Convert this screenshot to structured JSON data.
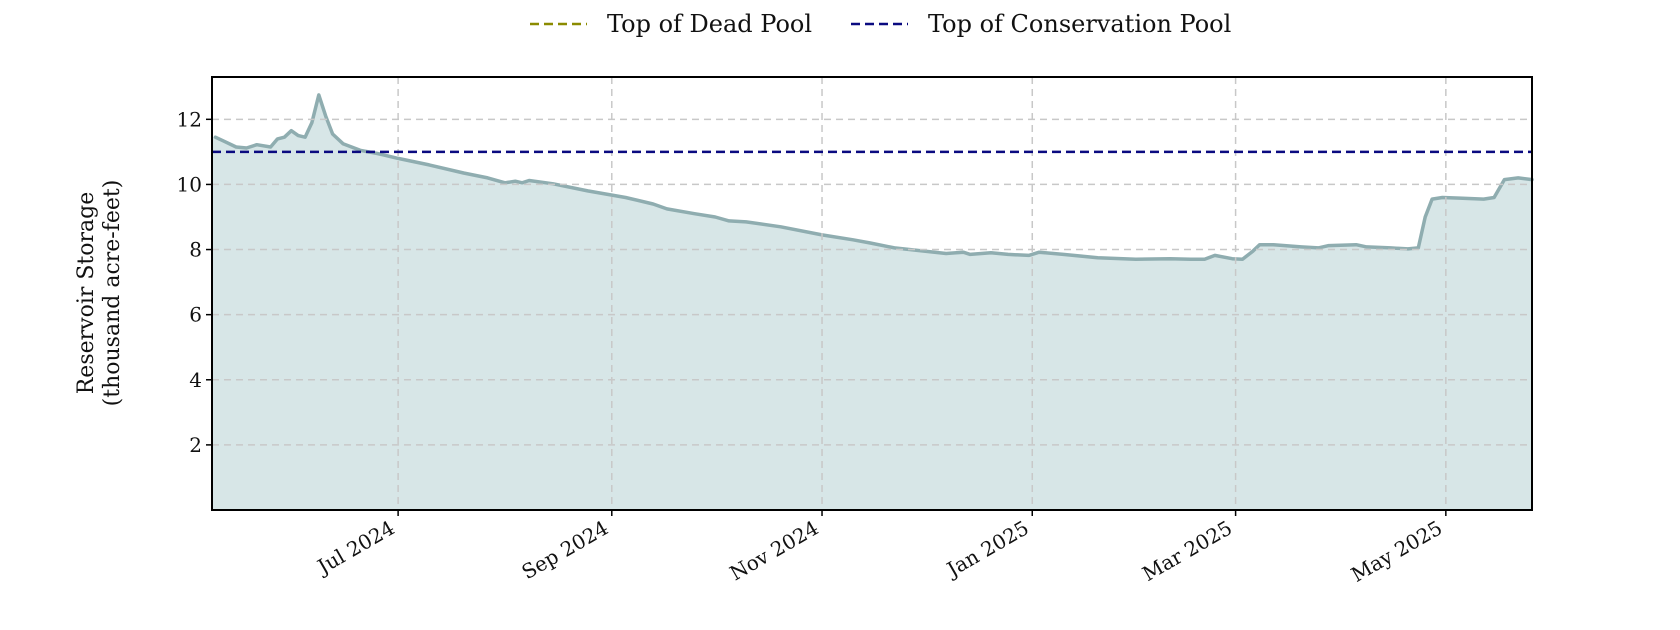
{
  "chart_data": {
    "type": "area",
    "title": "",
    "ylabel": [
      "Reservoir Storage",
      "(thousand acre-feet)"
    ],
    "ylim": [
      0,
      13.3
    ],
    "yticks": [
      2,
      4,
      6,
      8,
      10,
      12
    ],
    "xlim": [
      "2024-05-08",
      "2025-05-26"
    ],
    "xticks": [
      {
        "date": "2024-07-01",
        "label": "Jul 2024"
      },
      {
        "date": "2024-09-01",
        "label": "Sep 2024"
      },
      {
        "date": "2024-11-01",
        "label": "Nov 2024"
      },
      {
        "date": "2025-01-01",
        "label": "Jan 2025"
      },
      {
        "date": "2025-03-01",
        "label": "Mar 2025"
      },
      {
        "date": "2025-05-01",
        "label": "May 2025"
      }
    ],
    "grid": true,
    "legend": {
      "placement": "top-center",
      "entries": [
        {
          "label": "Top of Dead Pool",
          "color": "#8b8b00",
          "style": "dashed"
        },
        {
          "label": "Top of Conservation Pool",
          "color": "#0a0a80",
          "style": "dashed"
        }
      ]
    },
    "reference_lines": [
      {
        "name": "Top of Conservation Pool",
        "y": 11.0,
        "color": "#0a0a80"
      }
    ],
    "series": [
      {
        "line_color": "#8fadb0",
        "fill_color": "#d7e6e7",
        "points": [
          [
            "2024-05-09",
            11.45
          ],
          [
            "2024-05-12",
            11.3
          ],
          [
            "2024-05-15",
            11.15
          ],
          [
            "2024-05-18",
            11.12
          ],
          [
            "2024-05-21",
            11.22
          ],
          [
            "2024-05-25",
            11.15
          ],
          [
            "2024-05-27",
            11.4
          ],
          [
            "2024-05-29",
            11.45
          ],
          [
            "2024-05-31",
            11.65
          ],
          [
            "2024-06-02",
            11.5
          ],
          [
            "2024-06-04",
            11.45
          ],
          [
            "2024-06-06",
            11.9
          ],
          [
            "2024-06-08",
            12.75
          ],
          [
            "2024-06-10",
            12.1
          ],
          [
            "2024-06-12",
            11.55
          ],
          [
            "2024-06-15",
            11.25
          ],
          [
            "2024-06-20",
            11.05
          ],
          [
            "2024-06-25",
            10.95
          ],
          [
            "2024-07-01",
            10.8
          ],
          [
            "2024-07-10",
            10.6
          ],
          [
            "2024-07-20",
            10.35
          ],
          [
            "2024-07-27",
            10.2
          ],
          [
            "2024-08-01",
            10.05
          ],
          [
            "2024-08-04",
            10.1
          ],
          [
            "2024-08-06",
            10.05
          ],
          [
            "2024-08-08",
            10.12
          ],
          [
            "2024-08-15",
            10.02
          ],
          [
            "2024-08-25",
            9.8
          ],
          [
            "2024-09-05",
            9.6
          ],
          [
            "2024-09-13",
            9.4
          ],
          [
            "2024-09-17",
            9.25
          ],
          [
            "2024-09-25",
            9.1
          ],
          [
            "2024-10-01",
            9.0
          ],
          [
            "2024-10-05",
            8.88
          ],
          [
            "2024-10-10",
            8.85
          ],
          [
            "2024-10-20",
            8.7
          ],
          [
            "2024-11-01",
            8.45
          ],
          [
            "2024-11-10",
            8.3
          ],
          [
            "2024-11-15",
            8.2
          ],
          [
            "2024-11-22",
            8.05
          ],
          [
            "2024-12-01",
            7.95
          ],
          [
            "2024-12-07",
            7.88
          ],
          [
            "2024-12-12",
            7.92
          ],
          [
            "2024-12-14",
            7.85
          ],
          [
            "2024-12-20",
            7.9
          ],
          [
            "2024-12-25",
            7.85
          ],
          [
            "2024-12-31",
            7.82
          ],
          [
            "2025-01-03",
            7.92
          ],
          [
            "2025-01-10",
            7.85
          ],
          [
            "2025-01-20",
            7.75
          ],
          [
            "2025-01-31",
            7.7
          ],
          [
            "2025-02-10",
            7.72
          ],
          [
            "2025-02-16",
            7.7
          ],
          [
            "2025-02-20",
            7.7
          ],
          [
            "2025-02-23",
            7.82
          ],
          [
            "2025-02-28",
            7.72
          ],
          [
            "2025-03-03",
            7.7
          ],
          [
            "2025-03-06",
            7.95
          ],
          [
            "2025-03-08",
            8.15
          ],
          [
            "2025-03-12",
            8.15
          ],
          [
            "2025-03-20",
            8.08
          ],
          [
            "2025-03-25",
            8.05
          ],
          [
            "2025-03-28",
            8.12
          ],
          [
            "2025-04-05",
            8.15
          ],
          [
            "2025-04-08",
            8.08
          ],
          [
            "2025-04-15",
            8.05
          ],
          [
            "2025-04-20",
            8.02
          ],
          [
            "2025-04-23",
            8.05
          ],
          [
            "2025-04-25",
            9.0
          ],
          [
            "2025-04-27",
            9.55
          ],
          [
            "2025-04-30",
            9.6
          ],
          [
            "2025-05-05",
            9.58
          ],
          [
            "2025-05-12",
            9.55
          ],
          [
            "2025-05-15",
            9.6
          ],
          [
            "2025-05-18",
            10.15
          ],
          [
            "2025-05-22",
            10.2
          ],
          [
            "2025-05-26",
            10.15
          ]
        ]
      }
    ]
  }
}
